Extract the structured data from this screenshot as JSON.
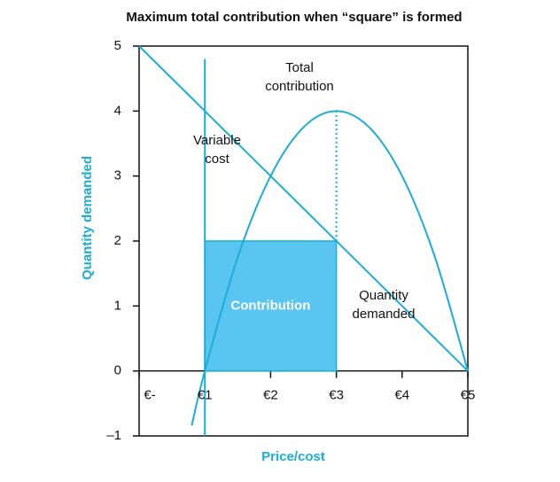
{
  "chart_data": {
    "type": "line",
    "title": "Maximum total contribution when “square” is formed",
    "xlabel": "Price/cost",
    "ylabel": "Quantity demanded",
    "xlim": [
      0,
      5
    ],
    "ylim": [
      -1,
      5
    ],
    "xticks": [
      {
        "value": 0,
        "label": "€-"
      },
      {
        "value": 1,
        "label": "€1"
      },
      {
        "value": 2,
        "label": "€2"
      },
      {
        "value": 3,
        "label": "€3"
      },
      {
        "value": 4,
        "label": "€4"
      },
      {
        "value": 5,
        "label": "€5"
      }
    ],
    "yticks": [
      {
        "value": -1,
        "label": "–1"
      },
      0,
      1,
      2,
      3,
      4,
      5
    ],
    "color": "#1aaed6",
    "demand": {
      "x": [
        0,
        5
      ],
      "values": [
        5,
        0
      ]
    },
    "total_contribution": {
      "x": [
        0.8,
        1,
        1.5,
        2,
        2.5,
        3,
        3.5,
        4,
        4.5,
        5
      ],
      "values": [
        -0.84,
        0,
        1.75,
        3,
        3.75,
        4,
        3.75,
        3,
        1.75,
        0
      ]
    },
    "variable_cost": {
      "x": [
        1,
        1
      ],
      "values": [
        -1,
        4.8
      ]
    },
    "max_marker": {
      "x": [
        3,
        3
      ],
      "values": [
        2,
        4
      ]
    },
    "contribution_area": {
      "x": [
        1,
        3
      ],
      "values": [
        0,
        2
      ],
      "color": "#5bc5f2"
    },
    "annotations": {
      "total_contribution": [
        "Total",
        "contribution"
      ],
      "variable_cost": [
        "Variable",
        "cost"
      ],
      "contribution": "Contribution",
      "quantity_demanded": [
        "Quantity",
        "demanded"
      ]
    }
  }
}
